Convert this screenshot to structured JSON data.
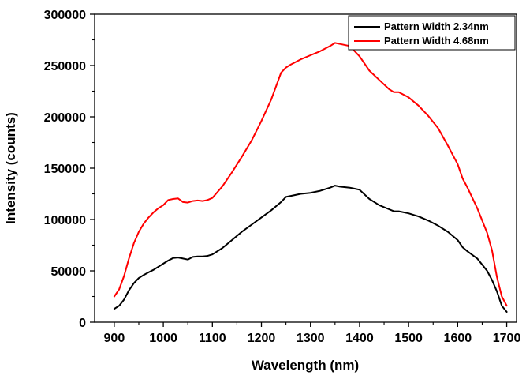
{
  "chart_data": {
    "type": "line",
    "title": "",
    "xlabel": "Wavelength (nm)",
    "ylabel": "Intensity (counts)",
    "xlim": [
      860,
      1720
    ],
    "ylim": [
      0,
      300000
    ],
    "x_ticks": [
      900,
      1000,
      1100,
      1200,
      1300,
      1400,
      1500,
      1600,
      1700
    ],
    "y_ticks": [
      0,
      50000,
      100000,
      150000,
      200000,
      250000,
      300000
    ],
    "grid": false,
    "legend_position": "top-right",
    "series": [
      {
        "name": "Pattern Width 2.34nm",
        "color": "#000000",
        "x": [
          900,
          910,
          920,
          930,
          940,
          950,
          960,
          970,
          980,
          990,
          1000,
          1010,
          1020,
          1030,
          1040,
          1050,
          1060,
          1070,
          1080,
          1090,
          1100,
          1120,
          1140,
          1160,
          1180,
          1200,
          1220,
          1240,
          1250,
          1260,
          1280,
          1300,
          1320,
          1340,
          1350,
          1360,
          1380,
          1390,
          1400,
          1420,
          1440,
          1460,
          1470,
          1480,
          1500,
          1520,
          1540,
          1560,
          1580,
          1600,
          1610,
          1620,
          1640,
          1660,
          1670,
          1680,
          1690,
          1700
        ],
        "y": [
          13000,
          16000,
          22000,
          31000,
          38000,
          43000,
          46000,
          48500,
          51000,
          54000,
          57000,
          60000,
          62500,
          63000,
          62000,
          61000,
          63500,
          64000,
          64000,
          64500,
          66000,
          72000,
          80000,
          88000,
          95000,
          102000,
          109000,
          117000,
          122000,
          123000,
          125000,
          126000,
          128000,
          131000,
          133000,
          132000,
          131000,
          130000,
          129000,
          120000,
          114000,
          110000,
          108000,
          108000,
          106000,
          103000,
          99000,
          94000,
          88000,
          80000,
          73000,
          69000,
          62000,
          50000,
          41000,
          30000,
          16000,
          10000
        ]
      },
      {
        "name": "Pattern Width 4.68nm",
        "color": "#ff0000",
        "x": [
          900,
          910,
          920,
          930,
          940,
          950,
          960,
          970,
          980,
          990,
          1000,
          1010,
          1020,
          1030,
          1040,
          1050,
          1060,
          1070,
          1080,
          1090,
          1100,
          1120,
          1140,
          1160,
          1180,
          1200,
          1220,
          1240,
          1250,
          1260,
          1280,
          1300,
          1320,
          1340,
          1350,
          1360,
          1380,
          1390,
          1400,
          1420,
          1440,
          1460,
          1470,
          1480,
          1500,
          1520,
          1540,
          1560,
          1580,
          1600,
          1610,
          1620,
          1640,
          1660,
          1670,
          1680,
          1690,
          1700
        ],
        "y": [
          25000,
          32000,
          45000,
          62000,
          77000,
          88000,
          96000,
          102000,
          107000,
          111000,
          114000,
          119000,
          120000,
          120500,
          117000,
          116500,
          118000,
          118500,
          118000,
          119000,
          121000,
          132000,
          146000,
          161000,
          177000,
          196000,
          217000,
          243000,
          248000,
          251000,
          256000,
          260000,
          264000,
          269000,
          272000,
          271000,
          269000,
          264000,
          259000,
          245000,
          236000,
          227000,
          224000,
          224000,
          219000,
          211000,
          201000,
          189000,
          172000,
          154000,
          140000,
          131000,
          111000,
          87000,
          70000,
          44000,
          25000,
          16000
        ]
      }
    ]
  }
}
